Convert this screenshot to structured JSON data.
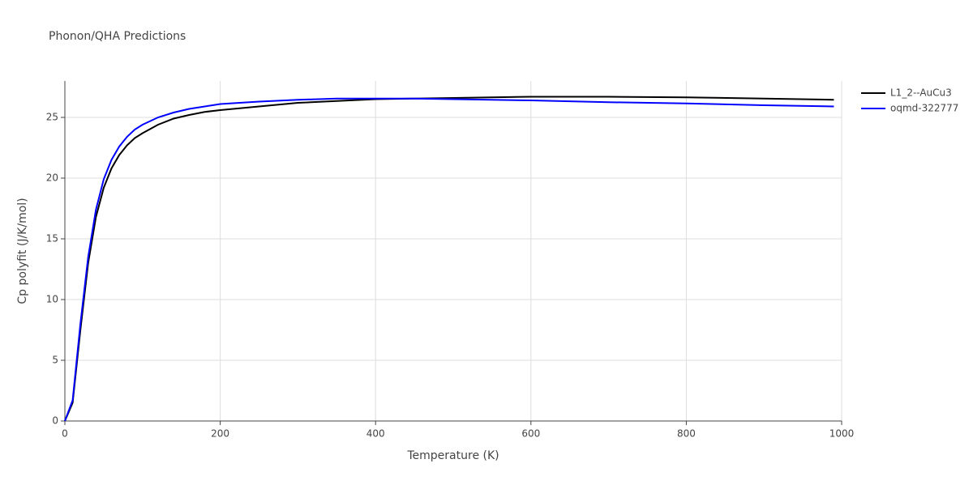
{
  "chart_data": {
    "type": "line",
    "title": "Phonon/QHA Predictions",
    "x_label": "Temperature (K)",
    "y_label": "Cp polyfit (J/K/mol)",
    "x": [
      0,
      10,
      20,
      30,
      40,
      50,
      60,
      70,
      80,
      90,
      100,
      120,
      140,
      160,
      180,
      200,
      250,
      300,
      350,
      400,
      450,
      500,
      600,
      700,
      800,
      900,
      990
    ],
    "series": [
      {
        "name": "L1_2--AuCu3",
        "color": "#000000",
        "values": [
          0,
          1.5,
          7.5,
          13,
          16.8,
          19.2,
          20.8,
          21.9,
          22.7,
          23.3,
          23.7,
          24.4,
          24.9,
          25.2,
          25.45,
          25.6,
          25.9,
          26.2,
          26.35,
          26.5,
          26.55,
          26.6,
          26.7,
          26.7,
          26.65,
          26.55,
          26.45
        ]
      },
      {
        "name": "oqmd-322777",
        "color": "#0000ff",
        "values": [
          0,
          1.7,
          8,
          13.5,
          17.4,
          19.9,
          21.5,
          22.6,
          23.4,
          24,
          24.4,
          25,
          25.4,
          25.7,
          25.9,
          26.1,
          26.3,
          26.45,
          26.55,
          26.55,
          26.55,
          26.5,
          26.4,
          26.25,
          26.15,
          26,
          25.9
        ]
      }
    ],
    "xlim": [
      0,
      1000
    ],
    "xticks": [
      0,
      200,
      400,
      600,
      800,
      1000
    ],
    "ylim": [
      0,
      28
    ],
    "yticks": [
      0,
      5,
      10,
      15,
      20,
      25
    ],
    "grid": true,
    "legend": "top-right"
  }
}
